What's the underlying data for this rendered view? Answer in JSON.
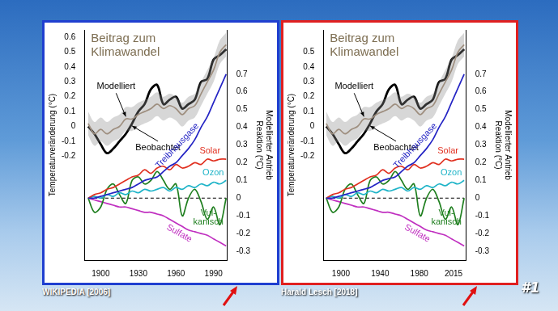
{
  "chart_data": [
    {
      "type": "line",
      "title": [
        "Beitrag zum",
        "Klimawandel"
      ],
      "source": "WIKIPEDIA [2006]",
      "color": "#1f3fd0",
      "y_label": "Temperaturveränderung (°C)",
      "y2_label": [
        "Modellierter Antrieb",
        "Reaktion (°C)"
      ],
      "grid": false,
      "x": [
        1890,
        1895,
        1900,
        1905,
        1910,
        1915,
        1920,
        1925,
        1930,
        1935,
        1940,
        1945,
        1950,
        1955,
        1960,
        1965,
        1970,
        1975,
        1980,
        1985,
        1990,
        1995,
        2000
      ],
      "xlim": [
        1887,
        2001
      ],
      "xticks": [
        1900,
        1930,
        1960,
        1990
      ],
      "ylim": [
        -0.9,
        0.65
      ],
      "yticks": [
        -0.2,
        -0.1,
        0,
        0.1,
        0.2,
        0.3,
        0.4,
        0.5,
        0.6
      ],
      "y2lim": [
        -0.35,
        0.95
      ],
      "y2ticks": [
        -0.3,
        -0.2,
        -0.1,
        0,
        0.1,
        0.2,
        0.3,
        0.4,
        0.5,
        0.6,
        0.7
      ],
      "series": [
        {
          "name": "Modelliert",
          "color": "#a89078",
          "values": [
            0.02,
            -0.05,
            -0.02,
            -0.05,
            -0.02,
            0.0,
            0.05,
            0.05,
            0.08,
            0.1,
            0.12,
            0.15,
            0.12,
            0.14,
            0.12,
            0.08,
            0.12,
            0.14,
            0.22,
            0.3,
            0.38,
            0.5,
            0.55
          ],
          "lower": [
            -0.06,
            -0.13,
            -0.1,
            -0.13,
            -0.1,
            -0.08,
            -0.03,
            -0.03,
            0.0,
            0.02,
            0.04,
            0.07,
            0.04,
            0.06,
            0.04,
            0.0,
            0.04,
            0.06,
            0.14,
            0.22,
            0.3,
            0.42,
            0.47
          ],
          "upper": [
            0.1,
            0.03,
            0.06,
            0.03,
            0.06,
            0.08,
            0.13,
            0.13,
            0.16,
            0.18,
            0.2,
            0.23,
            0.2,
            0.22,
            0.2,
            0.16,
            0.2,
            0.22,
            0.3,
            0.38,
            0.46,
            0.58,
            0.63
          ]
        },
        {
          "name": "Beobachtet",
          "color": "#000000",
          "line_style": "bold",
          "values": [
            0.0,
            -0.05,
            -0.12,
            -0.18,
            -0.15,
            -0.1,
            -0.05,
            0.02,
            0.1,
            0.15,
            0.25,
            0.28,
            0.15,
            0.18,
            0.2,
            0.12,
            0.15,
            0.18,
            0.3,
            0.32,
            0.45,
            0.48,
            0.52
          ]
        },
        {
          "name": "Treibhausgase",
          "color": "#2424c4",
          "axis": "y2",
          "values": [
            0.0,
            0.0,
            0.01,
            0.02,
            0.03,
            0.04,
            0.05,
            0.06,
            0.08,
            0.1,
            0.11,
            0.12,
            0.15,
            0.18,
            0.2,
            0.24,
            0.28,
            0.33,
            0.4,
            0.46,
            0.54,
            0.62,
            0.7
          ]
        },
        {
          "name": "Solar",
          "color": "#e03020",
          "axis": "y2",
          "values": [
            0.0,
            0.02,
            0.03,
            0.05,
            0.06,
            0.08,
            0.1,
            0.12,
            0.13,
            0.16,
            0.14,
            0.17,
            0.18,
            0.16,
            0.19,
            0.17,
            0.18,
            0.2,
            0.19,
            0.22,
            0.21,
            0.22,
            0.22
          ]
        },
        {
          "name": "Ozon",
          "color": "#1fb4c8",
          "axis": "y2",
          "values": [
            0.0,
            0.01,
            0.0,
            0.02,
            0.01,
            0.03,
            0.02,
            0.04,
            0.03,
            0.05,
            0.04,
            0.05,
            0.06,
            0.04,
            0.06,
            0.05,
            0.07,
            0.06,
            0.08,
            0.07,
            0.09,
            0.08,
            0.1
          ]
        },
        {
          "name": "Vul-kanisch",
          "color": "#1f7f1f",
          "axis": "y2",
          "values": [
            0.0,
            -0.08,
            -0.05,
            0.05,
            0.08,
            0.02,
            -0.03,
            0.1,
            0.12,
            0.08,
            0.1,
            0.15,
            0.1,
            0.05,
            0.08,
            -0.1,
            0.0,
            0.05,
            -0.02,
            -0.12,
            -0.05,
            -0.15,
            0.0
          ]
        },
        {
          "name": "Sulfate",
          "color": "#c030c0",
          "axis": "y2",
          "values": [
            0.0,
            -0.01,
            -0.02,
            -0.03,
            -0.04,
            -0.05,
            -0.05,
            -0.06,
            -0.07,
            -0.08,
            -0.08,
            -0.09,
            -0.1,
            -0.12,
            -0.14,
            -0.16,
            -0.18,
            -0.19,
            -0.2,
            -0.21,
            -0.23,
            -0.25,
            -0.27
          ]
        },
        {
          "color": "#000000",
          "axis": "y2",
          "line_style": "dashed",
          "values": [
            0,
            0,
            0,
            0,
            0,
            0,
            0,
            0,
            0,
            0,
            0,
            0,
            0,
            0,
            0,
            0,
            0,
            0,
            0,
            0,
            0,
            0,
            0
          ]
        }
      ]
    },
    {
      "type": "line",
      "title": [
        "Beitrag zum",
        "Klimawandel"
      ],
      "source": "Harald Lesch [2018]",
      "color": "#e02020",
      "y_label": "Temperaturveränderung (°C)",
      "y2_label": [
        "Modellierter Antrieb",
        "Reaktion (°C)"
      ],
      "grid": false,
      "x": [
        1885,
        1891.4,
        1897.8,
        1904.2,
        1910.6,
        1917,
        1923.4,
        1929.8,
        1936.2,
        1942.6,
        1949,
        1955.4,
        1961.8,
        1968.2,
        1974.6,
        1981,
        1987.4,
        1993.8,
        2000.2,
        2006.6,
        2013,
        2019.4,
        2025.8
      ],
      "xlim": [
        1882,
        2028
      ],
      "xticks": [
        1900,
        1940,
        1980,
        2015
      ],
      "ylim": [
        -0.9,
        0.65
      ],
      "yticks": [
        -0.2,
        -0.1,
        0,
        0.1,
        0.2,
        0.3,
        0.4,
        0.5
      ],
      "y2lim": [
        -0.35,
        0.95
      ],
      "y2ticks": [
        -0.3,
        -0.2,
        -0.1,
        0,
        0.1,
        0.2,
        0.3,
        0.4,
        0.5,
        0.6,
        0.7
      ],
      "series": [
        {
          "name": "Modelliert",
          "color": "#a89078",
          "values": [
            0.02,
            -0.05,
            -0.02,
            -0.05,
            -0.02,
            0.0,
            0.05,
            0.05,
            0.08,
            0.1,
            0.12,
            0.15,
            0.12,
            0.14,
            0.12,
            0.08,
            0.12,
            0.14,
            0.22,
            0.3,
            0.38,
            0.5,
            0.55
          ],
          "lower": [
            -0.06,
            -0.13,
            -0.1,
            -0.13,
            -0.1,
            -0.08,
            -0.03,
            -0.03,
            0.0,
            0.02,
            0.04,
            0.07,
            0.04,
            0.06,
            0.04,
            0.0,
            0.04,
            0.06,
            0.14,
            0.22,
            0.3,
            0.42,
            0.47
          ],
          "upper": [
            0.1,
            0.03,
            0.06,
            0.03,
            0.06,
            0.08,
            0.13,
            0.13,
            0.16,
            0.18,
            0.2,
            0.23,
            0.2,
            0.22,
            0.2,
            0.16,
            0.2,
            0.22,
            0.3,
            0.38,
            0.46,
            0.58,
            0.63
          ]
        },
        {
          "name": "Beobachtet",
          "color": "#000000",
          "line_style": "bold",
          "values": [
            0.0,
            -0.05,
            -0.12,
            -0.18,
            -0.15,
            -0.1,
            -0.05,
            0.02,
            0.1,
            0.15,
            0.25,
            0.28,
            0.15,
            0.18,
            0.2,
            0.12,
            0.15,
            0.18,
            0.3,
            0.32,
            0.45,
            0.48,
            0.52
          ]
        },
        {
          "name": "Treibhausgase",
          "color": "#2424c4",
          "axis": "y2",
          "values": [
            0.0,
            0.0,
            0.01,
            0.02,
            0.03,
            0.04,
            0.05,
            0.06,
            0.08,
            0.1,
            0.11,
            0.12,
            0.15,
            0.18,
            0.2,
            0.24,
            0.28,
            0.33,
            0.4,
            0.46,
            0.54,
            0.62,
            0.7
          ]
        },
        {
          "name": "Solar",
          "color": "#e03020",
          "axis": "y2",
          "values": [
            0.0,
            0.02,
            0.03,
            0.05,
            0.06,
            0.08,
            0.1,
            0.12,
            0.13,
            0.16,
            0.14,
            0.17,
            0.18,
            0.16,
            0.19,
            0.17,
            0.18,
            0.2,
            0.19,
            0.22,
            0.21,
            0.22,
            0.22
          ]
        },
        {
          "name": "Ozon",
          "color": "#1fb4c8",
          "axis": "y2",
          "values": [
            0.0,
            0.01,
            0.0,
            0.02,
            0.01,
            0.03,
            0.02,
            0.04,
            0.03,
            0.05,
            0.04,
            0.05,
            0.06,
            0.04,
            0.06,
            0.05,
            0.07,
            0.06,
            0.08,
            0.07,
            0.09,
            0.08,
            0.1
          ]
        },
        {
          "name": "Vul-kanisch",
          "color": "#1f7f1f",
          "axis": "y2",
          "values": [
            0.0,
            -0.08,
            -0.05,
            0.05,
            0.08,
            0.02,
            -0.03,
            0.1,
            0.12,
            0.08,
            0.1,
            0.15,
            0.1,
            0.05,
            0.08,
            -0.1,
            0.0,
            0.05,
            -0.02,
            -0.12,
            -0.05,
            -0.15,
            0.0
          ]
        },
        {
          "name": "Sulfate",
          "color": "#c030c0",
          "axis": "y2",
          "values": [
            0.0,
            -0.01,
            -0.02,
            -0.03,
            -0.04,
            -0.05,
            -0.05,
            -0.06,
            -0.07,
            -0.08,
            -0.08,
            -0.09,
            -0.1,
            -0.12,
            -0.14,
            -0.16,
            -0.18,
            -0.19,
            -0.2,
            -0.21,
            -0.23,
            -0.25,
            -0.27
          ]
        },
        {
          "color": "#000000",
          "axis": "y2",
          "line_style": "dashed",
          "values": [
            0,
            0,
            0,
            0,
            0,
            0,
            0,
            0,
            0,
            0,
            0,
            0,
            0,
            0,
            0,
            0,
            0,
            0,
            0,
            0,
            0,
            0,
            0
          ]
        }
      ]
    }
  ],
  "badge": "#1"
}
